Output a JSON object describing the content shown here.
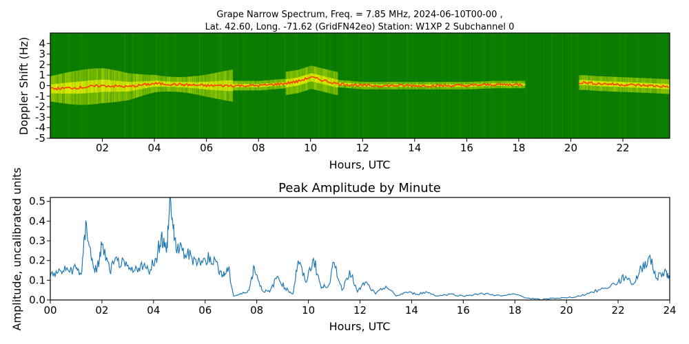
{
  "chart_data": [
    {
      "type": "heatmap",
      "title_line1": "Grape Narrow Spectrum, Freq. = 7.85 MHz, 2024-06-10T00-00 ,",
      "title_line2": "Lat.  42.60, Long. -71.62 (GridFN42eo) Station: W1XP 2 Subchannel 0",
      "xlabel": "Hours, UTC",
      "ylabel": "Doppler Shift (Hz)",
      "xlim": [
        0,
        23.8
      ],
      "ylim": [
        -5,
        5
      ],
      "xticks": [
        2,
        4,
        6,
        8,
        10,
        12,
        14,
        16,
        18,
        20,
        22
      ],
      "xtick_labels": [
        "02",
        "04",
        "06",
        "08",
        "10",
        "12",
        "14",
        "16",
        "18",
        "20",
        "22"
      ],
      "yticks": [
        4,
        3,
        2,
        1,
        0,
        -1,
        -2,
        -3,
        -4,
        -5
      ],
      "ytick_labels": [
        "4",
        "3",
        "2",
        "1",
        "0",
        "-1",
        "-2",
        "-3",
        "-4",
        "-5"
      ],
      "colors": {
        "background": "#0a7d00",
        "mid": "#c8e600",
        "trace": "#ff3c00"
      },
      "trace": {
        "x": [
          0,
          1,
          2,
          3,
          4,
          5,
          6,
          7,
          8,
          9,
          9.5,
          10,
          11,
          12,
          13,
          14,
          15,
          16,
          17,
          18.2,
          20.5,
          21,
          22,
          23,
          23.8
        ],
        "y": [
          -0.3,
          -0.2,
          0.0,
          -0.1,
          0.2,
          0.1,
          0.0,
          0.0,
          0.0,
          0.2,
          0.4,
          0.8,
          0.2,
          0.0,
          0.0,
          0.0,
          0.0,
          0.0,
          0.1,
          0.1,
          0.3,
          0.2,
          0.1,
          0.0,
          -0.1
        ]
      }
    },
    {
      "type": "line",
      "title": "Peak Amplitude by Minute",
      "xlabel": "Hours, UTC",
      "ylabel": "Amplitude, uncalibrated units",
      "xlim": [
        0,
        24
      ],
      "ylim": [
        0,
        0.52
      ],
      "xticks": [
        0,
        2,
        4,
        6,
        8,
        10,
        12,
        14,
        16,
        18,
        20,
        22,
        24
      ],
      "xtick_labels": [
        "00",
        "02",
        "04",
        "06",
        "08",
        "10",
        "12",
        "14",
        "16",
        "18",
        "20",
        "22",
        "24"
      ],
      "yticks": [
        0.0,
        0.1,
        0.2,
        0.3,
        0.4,
        0.5
      ],
      "ytick_labels": [
        "0.0",
        "0.1",
        "0.2",
        "0.3",
        "0.4",
        "0.5"
      ],
      "line_color": "#1f77b4",
      "x": [
        0,
        0.3,
        0.6,
        1.0,
        1.2,
        1.4,
        1.6,
        1.8,
        2.0,
        2.3,
        2.6,
        2.9,
        3.2,
        3.5,
        3.8,
        4.1,
        4.3,
        4.5,
        4.65,
        4.8,
        5.0,
        5.3,
        5.6,
        5.9,
        6.2,
        6.5,
        6.7,
        6.9,
        7.1,
        7.4,
        7.7,
        7.9,
        8.2,
        8.5,
        8.8,
        9.1,
        9.4,
        9.6,
        9.9,
        10.2,
        10.5,
        10.8,
        11.0,
        11.3,
        11.6,
        11.9,
        12.2,
        12.6,
        13.0,
        13.4,
        13.8,
        14.2,
        14.6,
        15.0,
        15.5,
        16.0,
        16.5,
        17.0,
        17.5,
        18.0,
        18.5,
        19.0,
        19.5,
        20.0,
        20.5,
        21.0,
        21.5,
        22.0,
        22.3,
        22.6,
        22.9,
        23.2,
        23.5,
        23.8,
        24.0
      ],
      "y": [
        0.12,
        0.14,
        0.15,
        0.16,
        0.13,
        0.39,
        0.2,
        0.14,
        0.28,
        0.15,
        0.2,
        0.17,
        0.14,
        0.18,
        0.15,
        0.21,
        0.33,
        0.24,
        0.52,
        0.3,
        0.25,
        0.23,
        0.21,
        0.19,
        0.22,
        0.17,
        0.12,
        0.16,
        0.02,
        0.03,
        0.05,
        0.17,
        0.05,
        0.04,
        0.12,
        0.06,
        0.03,
        0.2,
        0.09,
        0.21,
        0.06,
        0.08,
        0.19,
        0.05,
        0.15,
        0.04,
        0.09,
        0.03,
        0.07,
        0.02,
        0.04,
        0.03,
        0.04,
        0.02,
        0.03,
        0.02,
        0.03,
        0.03,
        0.02,
        0.03,
        0.01,
        0.0,
        0.01,
        0.01,
        0.02,
        0.04,
        0.06,
        0.09,
        0.12,
        0.08,
        0.16,
        0.22,
        0.11,
        0.15,
        0.11
      ]
    }
  ]
}
